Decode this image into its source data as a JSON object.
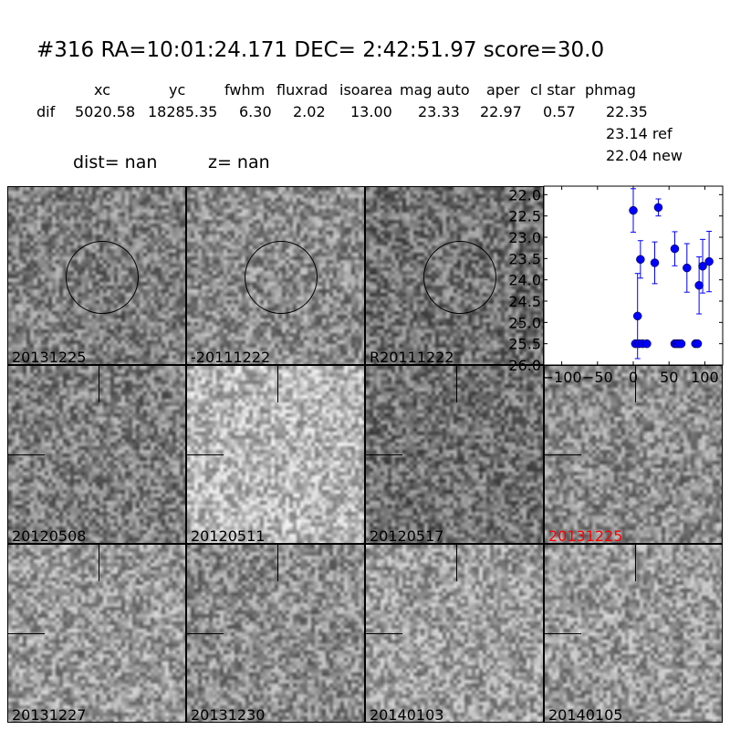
{
  "header": {
    "title": "#316   RA=10:01:24.171 DEC= 2:42:51.97      score=30.0",
    "columns": [
      "xc",
      "yc",
      "fwhm",
      "fluxrad",
      "isoarea",
      "mag auto",
      "aper",
      "cl star",
      "phmag"
    ],
    "row_label": "dif",
    "values": [
      "5020.58",
      "18285.35",
      "6.30",
      "2.02",
      "13.00",
      "23.33",
      "22.97",
      "0.57",
      "22.35"
    ],
    "ref": "23.14 ref",
    "new": "22.04 new",
    "dist": "dist=   nan",
    "z": "z=   nan"
  },
  "stamps": [
    {
      "label": "20131225",
      "color": "#000000",
      "marker": "circle",
      "tone": 0.5
    },
    {
      "label": "-20111222",
      "color": "#000000",
      "marker": "circle",
      "tone": 0.55
    },
    {
      "label": "R20111222",
      "color": "#000000",
      "marker": "circle",
      "tone": 0.45
    },
    {
      "label": "20120508",
      "color": "#000000",
      "marker": "cross",
      "tone": 0.5
    },
    {
      "label": "20120511",
      "color": "#000000",
      "marker": "cross",
      "tone": 0.72
    },
    {
      "label": "20120517",
      "color": "#000000",
      "marker": "cross",
      "tone": 0.45
    },
    {
      "label": "20131225",
      "color": "#ff0000",
      "marker": "cross",
      "tone": 0.55
    },
    {
      "label": "20131227",
      "color": "#000000",
      "marker": "cross",
      "tone": 0.6
    },
    {
      "label": "20131230",
      "color": "#000000",
      "marker": "cross",
      "tone": 0.55
    },
    {
      "label": "20140103",
      "color": "#000000",
      "marker": "cross",
      "tone": 0.62
    },
    {
      "label": "20140105",
      "color": "#000000",
      "marker": "cross",
      "tone": 0.6
    }
  ],
  "chart_data": {
    "type": "scatter",
    "xlim": [
      -125,
      125
    ],
    "ylim": [
      26.0,
      21.8
    ],
    "y_inverted": true,
    "xticks": [
      -100,
      -50,
      0,
      50,
      100
    ],
    "yticks": [
      22.0,
      22.5,
      23.0,
      23.5,
      24.0,
      24.5,
      25.0,
      25.5,
      26.0
    ],
    "color": "#0000ff",
    "points": [
      {
        "x": 0,
        "y": 22.37,
        "err": 0.51
      },
      {
        "x": 35,
        "y": 22.3,
        "err": 0.2
      },
      {
        "x": 10,
        "y": 23.52,
        "err": 0.44
      },
      {
        "x": 30,
        "y": 23.6,
        "err": 0.49
      },
      {
        "x": 6,
        "y": 24.85,
        "err": 1.0
      },
      {
        "x": 58,
        "y": 23.27,
        "err": 0.4
      },
      {
        "x": 75,
        "y": 23.72,
        "err": 0.57
      },
      {
        "x": 92,
        "y": 24.13,
        "err": 0.67
      },
      {
        "x": 97,
        "y": 23.68,
        "err": 0.63
      },
      {
        "x": 106,
        "y": 23.57,
        "err": 0.71
      },
      {
        "x": 3,
        "y": 25.5,
        "err": 0.05
      },
      {
        "x": 8,
        "y": 25.5,
        "err": 0.05
      },
      {
        "x": 13,
        "y": 25.5,
        "err": 0.05
      },
      {
        "x": 19,
        "y": 25.5,
        "err": 0.05
      },
      {
        "x": 58,
        "y": 25.5,
        "err": 0.05
      },
      {
        "x": 61,
        "y": 25.5,
        "err": 0.05
      },
      {
        "x": 64,
        "y": 25.5,
        "err": 0.05
      },
      {
        "x": 67,
        "y": 25.5,
        "err": 0.05
      },
      {
        "x": 87,
        "y": 25.5,
        "err": 0.05
      },
      {
        "x": 90,
        "y": 25.5,
        "err": 0.05
      }
    ]
  }
}
